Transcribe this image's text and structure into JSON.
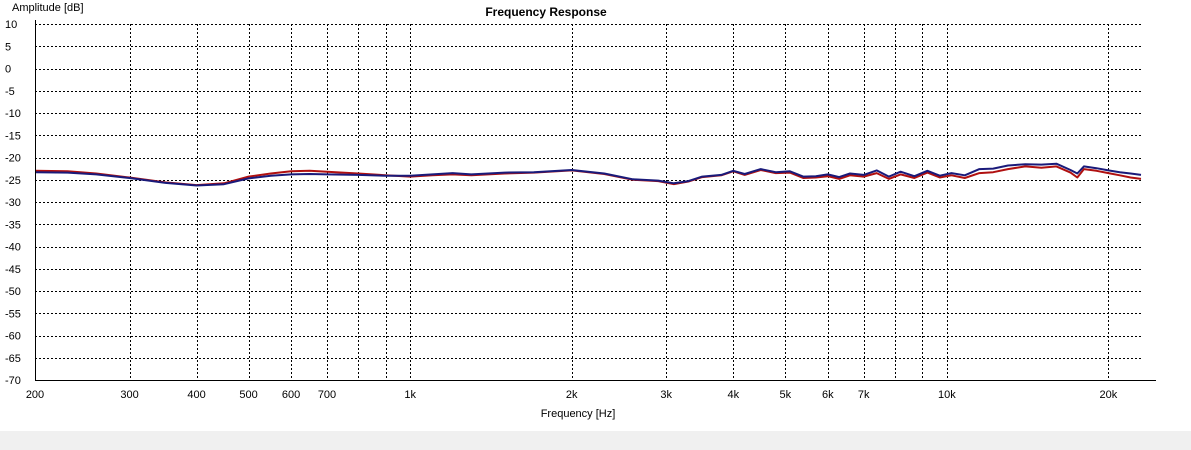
{
  "chart_data": {
    "type": "line",
    "title": "Frequency Response",
    "xlabel": "Frequency [Hz]",
    "ylabel": "Amplitude [dB]",
    "xscale": "log",
    "xlim": [
      200,
      23000
    ],
    "ylim": [
      -70,
      10
    ],
    "grid": true,
    "legend": "none",
    "x_ticks": [
      {
        "value": 200,
        "label": "200"
      },
      {
        "value": 300,
        "label": "300"
      },
      {
        "value": 400,
        "label": "400"
      },
      {
        "value": 500,
        "label": "500"
      },
      {
        "value": 600,
        "label": "600"
      },
      {
        "value": 700,
        "label": "700"
      },
      {
        "value": 800,
        "label": ""
      },
      {
        "value": 900,
        "label": ""
      },
      {
        "value": 1000,
        "label": "1k"
      },
      {
        "value": 2000,
        "label": "2k"
      },
      {
        "value": 3000,
        "label": "3k"
      },
      {
        "value": 4000,
        "label": "4k"
      },
      {
        "value": 5000,
        "label": "5k"
      },
      {
        "value": 6000,
        "label": "6k"
      },
      {
        "value": 7000,
        "label": "7k"
      },
      {
        "value": 8000,
        "label": ""
      },
      {
        "value": 9000,
        "label": ""
      },
      {
        "value": 10000,
        "label": "10k"
      },
      {
        "value": 20000,
        "label": "20k"
      }
    ],
    "y_ticks": [
      10,
      5,
      0,
      -5,
      -10,
      -15,
      -20,
      -25,
      -30,
      -35,
      -40,
      -45,
      -50,
      -55,
      -60,
      -65,
      -70
    ],
    "series": [
      {
        "color": "#b01010",
        "points": [
          [
            200,
            -23.0
          ],
          [
            230,
            -23.1
          ],
          [
            260,
            -23.6
          ],
          [
            300,
            -24.5
          ],
          [
            350,
            -25.6
          ],
          [
            400,
            -26.2
          ],
          [
            450,
            -25.8
          ],
          [
            500,
            -24.3
          ],
          [
            550,
            -23.6
          ],
          [
            600,
            -23.1
          ],
          [
            650,
            -23.0
          ],
          [
            700,
            -23.2
          ],
          [
            800,
            -23.6
          ],
          [
            900,
            -24.0
          ],
          [
            1000,
            -24.3
          ],
          [
            1100,
            -24.0
          ],
          [
            1200,
            -23.8
          ],
          [
            1300,
            -24.0
          ],
          [
            1500,
            -23.6
          ],
          [
            1700,
            -23.4
          ],
          [
            2000,
            -22.9
          ],
          [
            2300,
            -23.7
          ],
          [
            2600,
            -25.0
          ],
          [
            2900,
            -25.3
          ],
          [
            3100,
            -26.0
          ],
          [
            3300,
            -25.4
          ],
          [
            3500,
            -24.4
          ],
          [
            3800,
            -24.0
          ],
          [
            4000,
            -23.1
          ],
          [
            4200,
            -23.9
          ],
          [
            4500,
            -22.8
          ],
          [
            4800,
            -23.5
          ],
          [
            5100,
            -23.4
          ],
          [
            5400,
            -24.6
          ],
          [
            5700,
            -24.5
          ],
          [
            6000,
            -24.2
          ],
          [
            6300,
            -24.8
          ],
          [
            6600,
            -24.0
          ],
          [
            7000,
            -24.3
          ],
          [
            7400,
            -23.5
          ],
          [
            7800,
            -24.8
          ],
          [
            8200,
            -23.8
          ],
          [
            8700,
            -24.6
          ],
          [
            9200,
            -23.4
          ],
          [
            9700,
            -24.5
          ],
          [
            10200,
            -24.0
          ],
          [
            10800,
            -24.6
          ],
          [
            11500,
            -23.5
          ],
          [
            12200,
            -23.3
          ],
          [
            13000,
            -22.6
          ],
          [
            14000,
            -22.0
          ],
          [
            15000,
            -22.3
          ],
          [
            16000,
            -22.0
          ],
          [
            17000,
            -23.4
          ],
          [
            17500,
            -24.5
          ],
          [
            18000,
            -22.6
          ],
          [
            19000,
            -23.0
          ],
          [
            20000,
            -23.5
          ],
          [
            21000,
            -24.0
          ],
          [
            22000,
            -24.5
          ],
          [
            23000,
            -24.8
          ]
        ]
      },
      {
        "color": "#1a1a7a",
        "points": [
          [
            200,
            -23.3
          ],
          [
            230,
            -23.4
          ],
          [
            260,
            -23.8
          ],
          [
            300,
            -24.6
          ],
          [
            350,
            -25.7
          ],
          [
            400,
            -26.3
          ],
          [
            450,
            -26.0
          ],
          [
            500,
            -24.7
          ],
          [
            550,
            -24.1
          ],
          [
            600,
            -23.8
          ],
          [
            650,
            -23.7
          ],
          [
            700,
            -23.8
          ],
          [
            800,
            -23.9
          ],
          [
            900,
            -24.1
          ],
          [
            1000,
            -24.1
          ],
          [
            1100,
            -23.8
          ],
          [
            1200,
            -23.5
          ],
          [
            1300,
            -23.8
          ],
          [
            1500,
            -23.4
          ],
          [
            1700,
            -23.3
          ],
          [
            2000,
            -22.8
          ],
          [
            2300,
            -23.6
          ],
          [
            2600,
            -24.9
          ],
          [
            2900,
            -25.2
          ],
          [
            3100,
            -25.8
          ],
          [
            3300,
            -25.3
          ],
          [
            3500,
            -24.3
          ],
          [
            3800,
            -23.9
          ],
          [
            4000,
            -23.0
          ],
          [
            4200,
            -23.7
          ],
          [
            4500,
            -22.6
          ],
          [
            4800,
            -23.3
          ],
          [
            5100,
            -23.1
          ],
          [
            5400,
            -24.3
          ],
          [
            5700,
            -24.2
          ],
          [
            6000,
            -23.8
          ],
          [
            6300,
            -24.4
          ],
          [
            6600,
            -23.6
          ],
          [
            7000,
            -23.9
          ],
          [
            7400,
            -22.9
          ],
          [
            7800,
            -24.3
          ],
          [
            8200,
            -23.2
          ],
          [
            8700,
            -24.2
          ],
          [
            9200,
            -23.0
          ],
          [
            9700,
            -24.1
          ],
          [
            10200,
            -23.5
          ],
          [
            10800,
            -24.0
          ],
          [
            11500,
            -22.6
          ],
          [
            12200,
            -22.5
          ],
          [
            13000,
            -21.8
          ],
          [
            14000,
            -21.5
          ],
          [
            15000,
            -21.6
          ],
          [
            16000,
            -21.4
          ],
          [
            17000,
            -22.8
          ],
          [
            17500,
            -23.6
          ],
          [
            18000,
            -22.0
          ],
          [
            19000,
            -22.4
          ],
          [
            20000,
            -22.9
          ],
          [
            21000,
            -23.3
          ],
          [
            22000,
            -23.6
          ],
          [
            23000,
            -23.9
          ]
        ]
      }
    ]
  }
}
